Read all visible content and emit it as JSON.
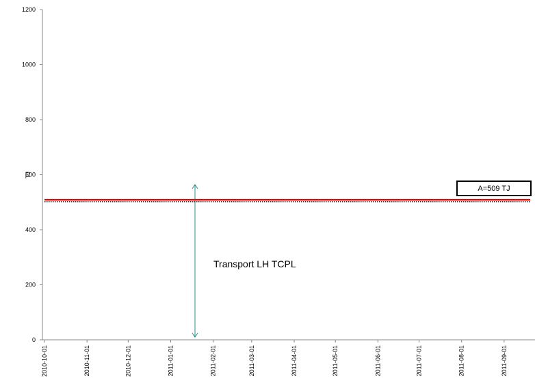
{
  "chart_data": {
    "type": "line",
    "y_label": "TJ",
    "xlim": [
      "2010-10-01",
      "2011-09-20"
    ],
    "xticks": [
      "2010-10-01",
      "2010-11-01",
      "2010-12-01",
      "2011-01-01",
      "2011-02-01",
      "2011-03-01",
      "2011-04-01",
      "2011-05-01",
      "2011-06-01",
      "2011-07-01",
      "2011-08-01",
      "2011-09-01"
    ],
    "ylim": [
      0,
      1200
    ],
    "yticks": [
      0,
      200,
      400,
      600,
      800,
      1000,
      1200
    ],
    "series": [
      {
        "color": "#ff0000",
        "style": "solid",
        "x": [
          "2010-10-01",
          "2011-09-20"
        ],
        "values": [
          509,
          509
        ]
      },
      {
        "color": "#000000",
        "style": "dotted",
        "x": [
          "2010-10-01",
          "2011-09-20"
        ],
        "values": [
          502,
          502
        ]
      }
    ],
    "annotations": [
      {
        "text": "A=509 TJ"
      },
      {
        "text": "Transport LH TCPL"
      }
    ]
  }
}
